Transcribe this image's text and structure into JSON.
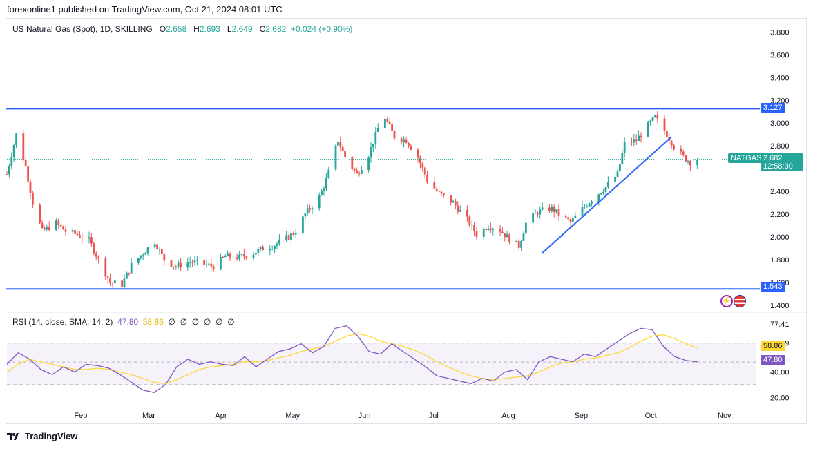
{
  "header": {
    "publish_text": "forexonline1 published on TradingView.com, Oct 21, 2024 08:01 UTC"
  },
  "legend": {
    "symbol": "US Natural Gas (Spot), 1D, SKILLING",
    "o_label": "O",
    "o_value": "2.658",
    "h_label": "H",
    "h_value": "2.693",
    "l_label": "L",
    "l_value": "2.649",
    "c_label": "C",
    "c_value": "2.682",
    "change": "+0.024 (+0.90%)"
  },
  "rsi_legend": {
    "title": "RSI (14, close, SMA, 14, 2)",
    "rsi": "47.80",
    "sma": "58.86",
    "na": [
      "∅",
      "∅",
      "∅",
      "∅",
      "∅",
      "∅"
    ]
  },
  "footer": {
    "brand": "TradingView"
  },
  "colors": {
    "up": "#26a69a",
    "down": "#ef5350",
    "line": "#2962ff",
    "rsi": "#7e57c2",
    "rsi_sma": "#fdd835"
  },
  "badges": {
    "resistance": "3.127",
    "support": "1.543",
    "ticker": "NATGAS",
    "price": "2.682",
    "countdown": "12:58:30",
    "rsi": "47.80",
    "rsi_sma": "58.86"
  },
  "chart_data": [
    {
      "type": "candlestick",
      "title": "US Natural Gas (Spot), 1D, SKILLING",
      "ylim": [
        1.35,
        3.9
      ],
      "y_ticks": [
        "3.800",
        "3.600",
        "3.400",
        "3.200",
        "3.000",
        "2.800",
        "2.600",
        "2.400",
        "2.200",
        "2.000",
        "1.800",
        "1.600",
        "1.400"
      ],
      "x_ticks": [
        "Feb",
        "Mar",
        "Apr",
        "May",
        "Jun",
        "Jul",
        "Aug",
        "Sep",
        "Oct",
        "Nov"
      ],
      "horizontal_lines": [
        3.127,
        1.543
      ],
      "last_price": 2.682,
      "trendline": {
        "from": [
          "Aug 16",
          1.86
        ],
        "to": [
          "Oct 10",
          2.88
        ]
      },
      "close_path": [
        [
          "Jan 1",
          2.55
        ],
        [
          "Jan 5",
          2.9
        ],
        [
          "Jan 9",
          2.62
        ],
        [
          "Jan 12",
          2.3
        ],
        [
          "Jan 16",
          2.05
        ],
        [
          "Jan 22",
          2.12
        ],
        [
          "Jan 26",
          2.05
        ],
        [
          "Jan 31",
          2.02
        ],
        [
          "Feb 5",
          1.97
        ],
        [
          "Feb 9",
          1.8
        ],
        [
          "Feb 14",
          1.6
        ],
        [
          "Feb 19",
          1.58
        ],
        [
          "Feb 23",
          1.75
        ],
        [
          "Feb 28",
          1.86
        ],
        [
          "Mar 4",
          1.96
        ],
        [
          "Mar 8",
          1.8
        ],
        [
          "Mar 13",
          1.74
        ],
        [
          "Mar 19",
          1.78
        ],
        [
          "Mar 25",
          1.76
        ],
        [
          "Mar 29",
          1.74
        ],
        [
          "Apr 3",
          1.83
        ],
        [
          "Apr 9",
          1.82
        ],
        [
          "Apr 15",
          1.86
        ],
        [
          "Apr 19",
          1.9
        ],
        [
          "Apr 24",
          1.93
        ],
        [
          "Apr 30",
          2.0
        ],
        [
          "May 3",
          2.05
        ],
        [
          "May 7",
          2.2
        ],
        [
          "May 13",
          2.35
        ],
        [
          "May 16",
          2.5
        ],
        [
          "May 21",
          2.85
        ],
        [
          "May 24",
          2.7
        ],
        [
          "May 29",
          2.55
        ],
        [
          "Jun 3",
          2.72
        ],
        [
          "Jun 7",
          2.95
        ],
        [
          "Jun 10",
          3.05
        ],
        [
          "Jun 14",
          2.88
        ],
        [
          "Jun 19",
          2.85
        ],
        [
          "Jun 24",
          2.7
        ],
        [
          "Jun 28",
          2.5
        ],
        [
          "Jul 3",
          2.38
        ],
        [
          "Jul 9",
          2.3
        ],
        [
          "Jul 15",
          2.15
        ],
        [
          "Jul 19",
          2.02
        ],
        [
          "Jul 24",
          2.1
        ],
        [
          "Jul 29",
          2.06
        ],
        [
          "Aug 2",
          1.98
        ],
        [
          "Aug 6",
          1.92
        ],
        [
          "Aug 9",
          2.12
        ],
        [
          "Aug 14",
          2.22
        ],
        [
          "Aug 20",
          2.25
        ],
        [
          "Aug 23",
          2.2
        ],
        [
          "Aug 28",
          2.13
        ],
        [
          "Sep 2",
          2.25
        ],
        [
          "Sep 6",
          2.33
        ],
        [
          "Sep 11",
          2.42
        ],
        [
          "Sep 17",
          2.55
        ],
        [
          "Sep 20",
          2.82
        ],
        [
          "Sep 25",
          2.85
        ],
        [
          "Sep 30",
          2.98
        ],
        [
          "Oct 3",
          3.05
        ],
        [
          "Oct 8",
          2.9
        ],
        [
          "Oct 11",
          2.8
        ],
        [
          "Oct 15",
          2.7
        ],
        [
          "Oct 18",
          2.66
        ],
        [
          "Oct 21",
          2.682
        ]
      ]
    },
    {
      "type": "line",
      "title": "RSI (14, close, SMA, 14, 2)",
      "ylim": [
        15,
        85
      ],
      "y_ticks": [
        "77.41",
        "62.59",
        "40.00",
        "20.00"
      ],
      "band": [
        30,
        62.59
      ],
      "mid": 47.8,
      "series": [
        {
          "name": "RSI",
          "values": [
            46,
            55,
            50,
            42,
            38,
            44,
            40,
            46,
            45,
            43,
            38,
            32,
            26,
            24,
            30,
            44,
            50,
            46,
            48,
            46,
            45,
            52,
            44,
            50,
            56,
            58,
            62,
            55,
            60,
            74,
            76,
            68,
            56,
            54,
            62,
            56,
            50,
            44,
            37,
            35,
            33,
            31,
            35,
            33,
            40,
            42,
            34,
            48,
            52,
            50,
            48,
            54,
            52,
            58,
            64,
            70,
            74,
            73,
            60,
            52,
            49,
            48
          ]
        },
        {
          "name": "RSI-based MA",
          "values": [
            40,
            46,
            50,
            48,
            46,
            44,
            42,
            42,
            43,
            42,
            40,
            38,
            35,
            32,
            31,
            34,
            38,
            42,
            44,
            45,
            46,
            48,
            48,
            49,
            51,
            53,
            56,
            58,
            60,
            64,
            68,
            70,
            68,
            64,
            62,
            60,
            57,
            53,
            48,
            44,
            40,
            37,
            35,
            34,
            35,
            36,
            37,
            40,
            44,
            47,
            48,
            50,
            51,
            53,
            55,
            59,
            64,
            68,
            69,
            66,
            62,
            58.86
          ]
        }
      ],
      "last_values": {
        "rsi": 47.8,
        "sma": 58.86
      }
    }
  ]
}
